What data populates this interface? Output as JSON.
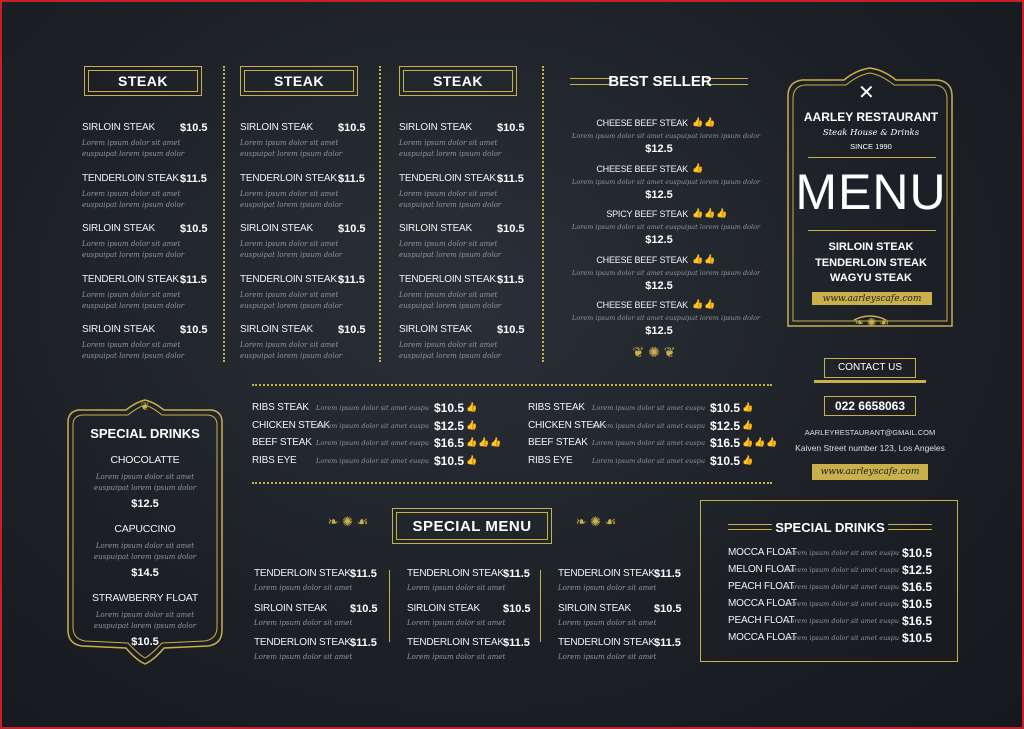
{
  "steak_columns": [
    {
      "title": "STEAK",
      "items": [
        {
          "name": "SIRLOIN STEAK",
          "price": "$10.5"
        },
        {
          "name": "TENDERLOIN STEAK",
          "price": "$11.5"
        },
        {
          "name": "SIRLOIN STEAK",
          "price": "$10.5"
        },
        {
          "name": "TENDERLOIN STEAK",
          "price": "$11.5"
        },
        {
          "name": "SIRLOIN STEAK",
          "price": "$10.5"
        }
      ]
    },
    {
      "title": "STEAK",
      "items": [
        {
          "name": "SIRLOIN STEAK",
          "price": "$10.5"
        },
        {
          "name": "TENDERLOIN STEAK",
          "price": "$11.5"
        },
        {
          "name": "SIRLOIN STEAK",
          "price": "$10.5"
        },
        {
          "name": "TENDERLOIN STEAK",
          "price": "$11.5"
        },
        {
          "name": "SIRLOIN STEAK",
          "price": "$10.5"
        }
      ]
    },
    {
      "title": "STEAK",
      "items": [
        {
          "name": "SIRLOIN STEAK",
          "price": "$10.5"
        },
        {
          "name": "TENDERLOIN STEAK",
          "price": "$11.5"
        },
        {
          "name": "SIRLOIN STEAK",
          "price": "$10.5"
        },
        {
          "name": "TENDERLOIN STEAK",
          "price": "$11.5"
        },
        {
          "name": "SIRLOIN STEAK",
          "price": "$10.5"
        }
      ]
    }
  ],
  "desc_line1": "Lorem ipsum dolor sit amet",
  "desc_line2": "euspuipat lorem ipsum dolor",
  "desc_short": "Lorem ipsum dolor sit amet euspu",
  "best_seller": {
    "title": "BEST SELLER",
    "desc": "Lorem ipsum dolor sit amet euspuipat lorem ipsum dolor",
    "items": [
      {
        "name": "CHEESE BEEF STEAK",
        "price": "$12.5",
        "thumbs": "👍👍"
      },
      {
        "name": "CHEESE BEEF STEAK",
        "price": "$12.5",
        "thumbs": "👍"
      },
      {
        "name": "SPICY BEEF STEAK",
        "price": "$12.5",
        "thumbs": "👍👍👍"
      },
      {
        "name": "CHEESE BEEF STEAK",
        "price": "$12.5",
        "thumbs": "👍👍"
      },
      {
        "name": "CHEESE BEEF STEAK",
        "price": "$12.5",
        "thumbs": "👍👍"
      }
    ]
  },
  "brand": {
    "name": "AARLEY RESTAURANT",
    "tagline": "Steak House & Drinks",
    "since": "SINCE 1990",
    "menu_title": "MENU",
    "featured": [
      "SIRLOIN STEAK",
      "TENDERLOIN STEAK",
      "WAGYU STEAK"
    ],
    "website": "www.aarleyscafe.com"
  },
  "contact": {
    "title": "CONTACT US",
    "phone": "022 6658063",
    "email": "AARLEYRESTAURANT@GMAIL.COM",
    "address": "Kaiven Street number 123, Los Angeles",
    "website": "www.aarleyscafe.com"
  },
  "middle_band": {
    "left": [
      {
        "name": "RIBS STEAK",
        "price": "$10.5",
        "thumbs": "👍"
      },
      {
        "name": "CHICKEN STEAK",
        "price": "$12.5",
        "thumbs": "👍"
      },
      {
        "name": "BEEF STEAK",
        "price": "$16.5",
        "thumbs": "👍👍👍"
      },
      {
        "name": "RIBS EYE",
        "price": "$10.5",
        "thumbs": "👍"
      }
    ],
    "right": [
      {
        "name": "RIBS STEAK",
        "price": "$10.5",
        "thumbs": "👍"
      },
      {
        "name": "CHICKEN STEAK",
        "price": "$12.5",
        "thumbs": "👍"
      },
      {
        "name": "BEEF STEAK",
        "price": "$16.5",
        "thumbs": "👍👍👍"
      },
      {
        "name": "RIBS EYE",
        "price": "$10.5",
        "thumbs": "👍"
      }
    ]
  },
  "special_drinks_left": {
    "title": "SPECIAL DRINKS",
    "items": [
      {
        "name": "CHOCOLATTE",
        "price": "$12.5"
      },
      {
        "name": "CAPUCCINO",
        "price": "$14.5"
      },
      {
        "name": "STRAWBERRY FLOAT",
        "price": "$10.5"
      }
    ]
  },
  "special_menu": {
    "title": "SPECIAL MENU",
    "columns": [
      [
        {
          "name": "TENDERLOIN STEAK",
          "price": "$11.5"
        },
        {
          "name": "SIRLOIN STEAK",
          "price": "$10.5"
        },
        {
          "name": "TENDERLOIN STEAK",
          "price": "$11.5"
        }
      ],
      [
        {
          "name": "TENDERLOIN STEAK",
          "price": "$11.5"
        },
        {
          "name": "SIRLOIN STEAK",
          "price": "$10.5"
        },
        {
          "name": "TENDERLOIN STEAK",
          "price": "$11.5"
        }
      ],
      [
        {
          "name": "TENDERLOIN STEAK",
          "price": "$11.5"
        },
        {
          "name": "SIRLOIN STEAK",
          "price": "$10.5"
        },
        {
          "name": "TENDERLOIN STEAK",
          "price": "$11.5"
        }
      ]
    ]
  },
  "special_drinks_right": {
    "title": "SPECIAL DRINKS",
    "items": [
      {
        "name": "MOCCA FLOAT",
        "price": "$10.5"
      },
      {
        "name": "MELON FLOAT",
        "price": "$12.5"
      },
      {
        "name": "PEACH FLOAT",
        "price": "$16.5"
      },
      {
        "name": "MOCCA FLOAT",
        "price": "$10.5"
      },
      {
        "name": "PEACH FLOAT",
        "price": "$16.5"
      },
      {
        "name": "MOCCA FLOAT",
        "price": "$10.5"
      }
    ]
  },
  "colors": {
    "accent": "#c9b04a",
    "background": "#1d2127",
    "border": "#c8202a"
  },
  "icons": {
    "brand": "crossed-fork-knife-icon",
    "thumbs": "thumbs-up-icon",
    "ornament": "scroll-ornament-icon"
  }
}
